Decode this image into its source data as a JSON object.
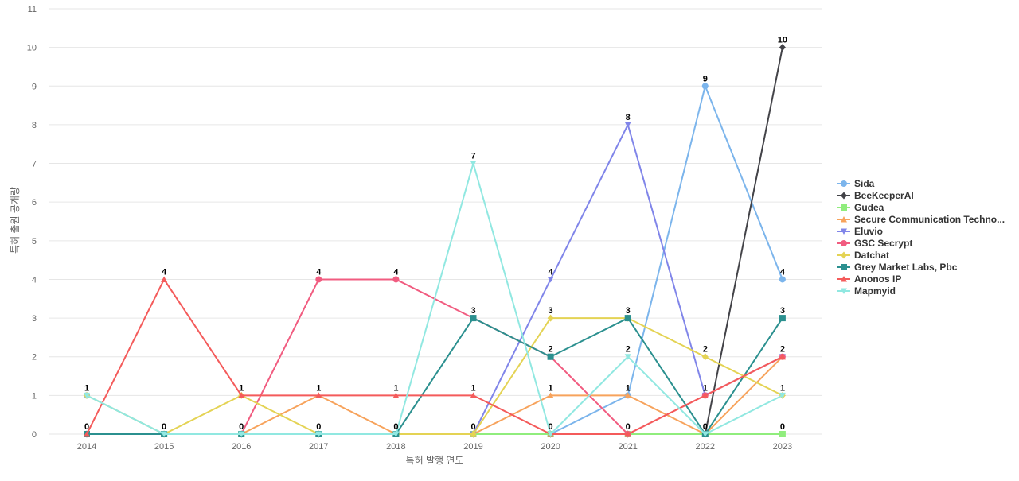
{
  "chart_data": {
    "type": "line",
    "title": "",
    "xlabel": "특허 발행 연도",
    "ylabel": "특허 출원 공개량",
    "x": [
      "2014",
      "2015",
      "2016",
      "2017",
      "2018",
      "2019",
      "2020",
      "2021",
      "2022",
      "2023"
    ],
    "ylim": [
      0,
      11
    ],
    "yticks": [
      "0",
      "1",
      "2",
      "3",
      "4",
      "5",
      "6",
      "7",
      "8",
      "9",
      "10",
      "11"
    ],
    "grid": true,
    "legend_position": "right",
    "series": [
      {
        "name": "Sida",
        "color": "#7cb5ec",
        "marker": "circle",
        "values": [
          1,
          0,
          0,
          0,
          0,
          0,
          0,
          1,
          9,
          4
        ]
      },
      {
        "name": "BeeKeeperAI",
        "color": "#434348",
        "marker": "diamond",
        "values": [
          0,
          0,
          0,
          0,
          0,
          0,
          0,
          0,
          0,
          10
        ]
      },
      {
        "name": "Gudea",
        "color": "#90ed7d",
        "marker": "square",
        "values": [
          0,
          0,
          0,
          0,
          0,
          0,
          0,
          0,
          0,
          0
        ]
      },
      {
        "name": "Secure Communication Techno...",
        "color": "#f7a35c",
        "marker": "triangle",
        "values": [
          0,
          0,
          0,
          1,
          0,
          0,
          1,
          1,
          0,
          2
        ]
      },
      {
        "name": "Eluvio",
        "color": "#8085e9",
        "marker": "triangle-down",
        "values": [
          0,
          0,
          0,
          0,
          0,
          0,
          4,
          8,
          1,
          2
        ]
      },
      {
        "name": "GSC Secrypt",
        "color": "#f15c80",
        "marker": "circle",
        "values": [
          0,
          0,
          0,
          4,
          4,
          3,
          2,
          0,
          1,
          2
        ]
      },
      {
        "name": "Datchat",
        "color": "#e4d354",
        "marker": "diamond",
        "values": [
          1,
          0,
          1,
          0,
          0,
          0,
          3,
          3,
          2,
          1
        ]
      },
      {
        "name": "Grey Market Labs, Pbc",
        "color": "#2b908f",
        "marker": "square",
        "values": [
          0,
          0,
          0,
          0,
          0,
          3,
          2,
          3,
          0,
          3
        ]
      },
      {
        "name": "Anonos IP",
        "color": "#f45b5b",
        "marker": "triangle",
        "values": [
          0,
          4,
          1,
          1,
          1,
          1,
          0,
          0,
          1,
          2
        ]
      },
      {
        "name": "Mapmyid",
        "color": "#91e8e1",
        "marker": "triangle-down",
        "values": [
          1,
          0,
          0,
          0,
          0,
          7,
          0,
          2,
          0,
          1
        ]
      }
    ],
    "data_labels": [
      {
        "x": "2014",
        "value": "1"
      },
      {
        "x": "2014",
        "value": "0"
      },
      {
        "x": "2015",
        "value": "4"
      },
      {
        "x": "2015",
        "value": "0"
      },
      {
        "x": "2016",
        "value": "1"
      },
      {
        "x": "2016",
        "value": "0"
      },
      {
        "x": "2017",
        "value": "4"
      },
      {
        "x": "2017",
        "value": "1"
      },
      {
        "x": "2017",
        "value": "0"
      },
      {
        "x": "2018",
        "value": "4"
      },
      {
        "x": "2018",
        "value": "1"
      },
      {
        "x": "2018",
        "value": "0"
      },
      {
        "x": "2019",
        "value": "7"
      },
      {
        "x": "2019",
        "value": "3"
      },
      {
        "x": "2019",
        "value": "1"
      },
      {
        "x": "2019",
        "value": "0"
      },
      {
        "x": "2020",
        "value": "4"
      },
      {
        "x": "2020",
        "value": "3"
      },
      {
        "x": "2020",
        "value": "2"
      },
      {
        "x": "2020",
        "value": "1"
      },
      {
        "x": "2020",
        "value": "0"
      },
      {
        "x": "2021",
        "value": "8"
      },
      {
        "x": "2021",
        "value": "3"
      },
      {
        "x": "2021",
        "value": "2"
      },
      {
        "x": "2021",
        "value": "1"
      },
      {
        "x": "2021",
        "value": "0"
      },
      {
        "x": "2022",
        "value": "9"
      },
      {
        "x": "2022",
        "value": "2"
      },
      {
        "x": "2022",
        "value": "1"
      },
      {
        "x": "2022",
        "value": "0"
      },
      {
        "x": "2023",
        "value": "10"
      },
      {
        "x": "2023",
        "value": "4"
      },
      {
        "x": "2023",
        "value": "3"
      },
      {
        "x": "2023",
        "value": "2"
      },
      {
        "x": "2023",
        "value": "1"
      },
      {
        "x": "2023",
        "value": "0"
      }
    ]
  }
}
